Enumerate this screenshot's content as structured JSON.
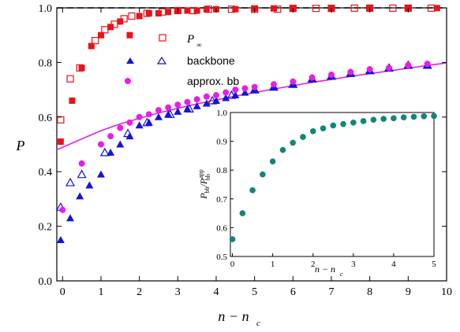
{
  "chart_data": [
    {
      "type": "scatter",
      "title": "",
      "xlabel": "n − n",
      "xlabel_sub": "c",
      "ylabel": "P",
      "xlim": [
        -0.15,
        10
      ],
      "ylim": [
        0.0,
        1.0
      ],
      "x_ticks": [
        "0",
        "1",
        "2",
        "3",
        "4",
        "5",
        "6",
        "7",
        "8",
        "9",
        "10"
      ],
      "y_ticks": [
        "0.0",
        "0.2",
        "0.4",
        "0.6",
        "0.8",
        "1.0"
      ],
      "grid": false,
      "legend_placement": "upper-middle",
      "reference_line": {
        "y": 1.0,
        "style": "dashed",
        "color": "#000000"
      },
      "series": [
        {
          "name": "P",
          "name_sub": "∞",
          "marker": "square-open",
          "color": "#e8141b",
          "x": [
            -0.05,
            0.2,
            0.45,
            0.85,
            1.1,
            1.35,
            1.6,
            1.8,
            2.2,
            2.6,
            3.0,
            3.4,
            3.8,
            4.4,
            5.0,
            5.6,
            6.0,
            6.6,
            7.0,
            7.6,
            8.0,
            8.6,
            9.0,
            9.6
          ],
          "y": [
            0.59,
            0.74,
            0.78,
            0.88,
            0.92,
            0.94,
            0.96,
            0.97,
            0.98,
            0.985,
            0.99,
            0.99,
            0.995,
            0.995,
            0.995,
            0.995,
            0.998,
            0.998,
            0.998,
            0.999,
            0.999,
            0.999,
            0.999,
            0.999
          ]
        },
        {
          "name": "",
          "marker": "square-filled",
          "color": "#e8141b",
          "x": [
            -0.05,
            0.25,
            0.5,
            0.75,
            1.0,
            1.25,
            1.5,
            1.75,
            2.0,
            2.25,
            2.5,
            2.75,
            3.0,
            3.25,
            3.5,
            3.75,
            4.0,
            4.5,
            5.0,
            5.5,
            6.0,
            7.0,
            8.0,
            9.0,
            9.75
          ],
          "y": [
            0.51,
            0.66,
            0.78,
            0.86,
            0.9,
            0.93,
            0.95,
            0.9,
            0.97,
            0.98,
            0.98,
            0.985,
            0.99,
            0.99,
            0.99,
            0.995,
            0.995,
            0.995,
            0.998,
            0.998,
            0.998,
            0.999,
            0.999,
            0.999,
            0.999
          ]
        },
        {
          "name": "backbone",
          "marker": "triangle-open",
          "color": "#1515d8",
          "x": [
            -0.05,
            0.2,
            0.5,
            1.1,
            1.7,
            2.2,
            2.8,
            3.3,
            3.9,
            4.4,
            5.0,
            5.5,
            6.0,
            6.5,
            7.0,
            7.5,
            8.0,
            8.5,
            9.0,
            9.5
          ],
          "y": [
            0.27,
            0.36,
            0.39,
            0.47,
            0.54,
            0.58,
            0.61,
            0.63,
            0.66,
            0.68,
            0.7,
            0.71,
            0.72,
            0.74,
            0.75,
            0.76,
            0.77,
            0.78,
            0.79,
            0.79
          ]
        },
        {
          "name": "",
          "marker": "triangle-filled",
          "color": "#1515d8",
          "x": [
            -0.05,
            0.2,
            0.45,
            0.7,
            1.0,
            1.25,
            1.5,
            1.75,
            2.0,
            2.25,
            2.5,
            2.75,
            3.0,
            3.25,
            3.5,
            3.75,
            4.0,
            4.25,
            4.5,
            4.75,
            5.0,
            5.5,
            6.0,
            6.5,
            7.0,
            7.5,
            8.0,
            8.5,
            9.0,
            9.5
          ],
          "y": [
            0.15,
            0.23,
            0.31,
            0.35,
            0.39,
            0.47,
            0.5,
            0.53,
            0.57,
            0.58,
            0.6,
            0.61,
            0.62,
            0.63,
            0.64,
            0.65,
            0.66,
            0.67,
            0.68,
            0.69,
            0.7,
            0.71,
            0.72,
            0.74,
            0.75,
            0.76,
            0.77,
            0.78,
            0.79,
            0.79
          ]
        },
        {
          "name": "approx. bb",
          "marker": "circle-filled",
          "color": "#e81ee8",
          "x": [
            0.0,
            0.5,
            1.0,
            1.25,
            1.5,
            1.75,
            2.0,
            2.25,
            2.5,
            2.75,
            3.0,
            3.25,
            3.5,
            3.75,
            4.0,
            4.25,
            4.5,
            4.75,
            5.0,
            5.5,
            6.0,
            6.5,
            7.0,
            7.5,
            8.0,
            8.5,
            9.0,
            9.5
          ],
          "y": [
            0.26,
            0.43,
            0.5,
            0.53,
            0.56,
            0.58,
            0.6,
            0.61,
            0.625,
            0.635,
            0.645,
            0.655,
            0.665,
            0.675,
            0.68,
            0.69,
            0.7,
            0.705,
            0.71,
            0.72,
            0.73,
            0.745,
            0.755,
            0.765,
            0.775,
            0.78,
            0.79,
            0.795
          ]
        }
      ],
      "fit_curve": {
        "color": "#e81ee8",
        "x": [
          -0.15,
          0.5,
          1.0,
          1.5,
          2.0,
          2.5,
          3.0,
          3.5,
          4.0,
          4.5,
          5.0,
          5.5,
          6.0,
          6.5,
          7.0,
          7.5,
          8.0,
          8.5,
          9.0,
          9.5,
          10.0
        ],
        "y": [
          0.48,
          0.52,
          0.55,
          0.575,
          0.595,
          0.615,
          0.632,
          0.648,
          0.663,
          0.677,
          0.69,
          0.703,
          0.715,
          0.727,
          0.738,
          0.749,
          0.759,
          0.769,
          0.779,
          0.789,
          0.798
        ]
      }
    },
    {
      "type": "scatter",
      "title": "",
      "xlabel": "n − n",
      "xlabel_sub": "c",
      "ylabel_parts": [
        "P",
        "bb",
        "/P",
        "app",
        "bb"
      ],
      "xlim": [
        -0.05,
        5.0
      ],
      "ylim": [
        0.5,
        1.0
      ],
      "x_ticks": [
        "0",
        "1",
        "2",
        "3",
        "4",
        "5"
      ],
      "y_ticks": [
        "0.5",
        "0.6",
        "0.7",
        "0.8",
        "0.9",
        "1.0"
      ],
      "grid": false,
      "series": [
        {
          "name": "",
          "marker": "circle-filled",
          "color": "#11857a",
          "x": [
            0.0,
            0.25,
            0.5,
            0.75,
            1.0,
            1.25,
            1.5,
            1.75,
            2.0,
            2.25,
            2.5,
            2.75,
            3.0,
            3.25,
            3.5,
            3.75,
            4.0,
            4.25,
            4.5,
            4.75,
            5.0
          ],
          "y": [
            0.56,
            0.65,
            0.73,
            0.785,
            0.83,
            0.87,
            0.895,
            0.915,
            0.935,
            0.945,
            0.955,
            0.96,
            0.965,
            0.97,
            0.975,
            0.978,
            0.98,
            0.983,
            0.985,
            0.987,
            0.988
          ]
        }
      ]
    }
  ]
}
